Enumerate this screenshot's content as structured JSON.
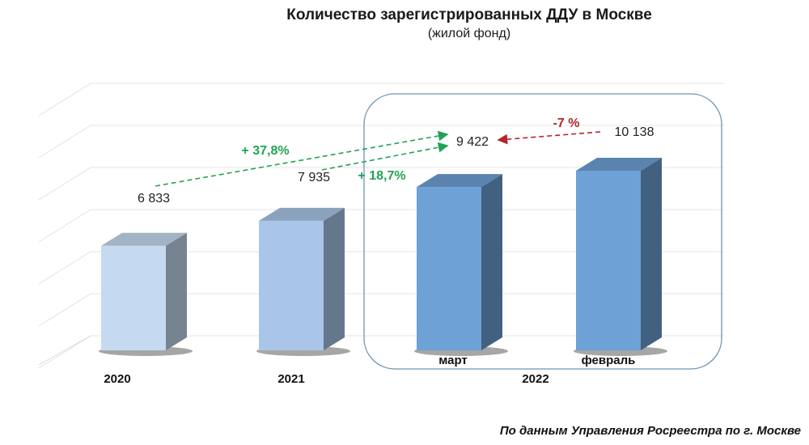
{
  "chart_data": {
    "type": "bar",
    "title": "Количество зарегистрированных ДДУ в Москве",
    "subtitle": "(жилой фонд)",
    "categories": [
      "2020",
      "2021",
      "март",
      "февраль"
    ],
    "values": [
      6833,
      7935,
      9422,
      10138
    ],
    "value_labels": [
      "6 833",
      "7 935",
      "9 422",
      "10 138"
    ],
    "group_label": "2022",
    "ylim": [
      0,
      12000
    ],
    "grid": true,
    "bar_colors": [
      "#c5daf0",
      "#a9c6e8",
      "#6ea1d6",
      "#6ea1d6"
    ],
    "annotations": [
      {
        "text": "+ 37,8%",
        "from": "2020",
        "to": "март",
        "color": "#21a356"
      },
      {
        "text": "+ 18,7%",
        "from": "2021",
        "to": "март",
        "color": "#21a356"
      },
      {
        "text": "-7 %",
        "from": "февраль",
        "to": "март",
        "color": "#b3262b"
      }
    ]
  },
  "source": "По данным Управления Росреестра по г. Москве"
}
